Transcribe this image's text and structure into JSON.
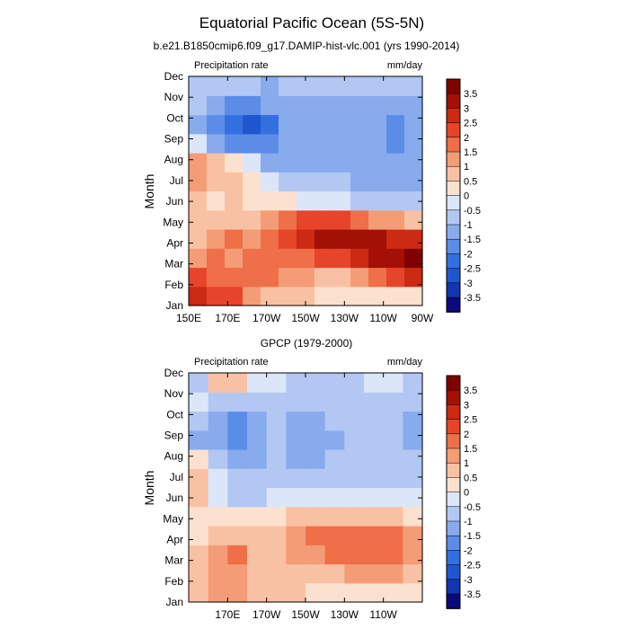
{
  "figure": {
    "title": "Equatorial Pacific Ocean (5S-5N)"
  },
  "chart_data": [
    {
      "type": "heatmap",
      "title": "b.e21.B1850cmip6.f09_g17.DAMIP-hist-vlc.001 (yrs 1990-2014)",
      "left_label": "Precipitation rate",
      "right_label": "mm/day",
      "ylabel": "Month",
      "xlabel": "",
      "x_ticks": [
        "150E",
        "170E",
        "170W",
        "150W",
        "130W",
        "110W",
        "90W"
      ],
      "y_ticks": [
        "Jan",
        "Feb",
        "Mar",
        "Apr",
        "May",
        "Jun",
        "Jul",
        "Aug",
        "Sep",
        "Oct",
        "Nov",
        "Dec"
      ],
      "colorbar_labels": [
        "3.5",
        "3",
        "2.5",
        "2",
        "1.5",
        "1",
        "0.5",
        "0",
        "-0.5",
        "-1",
        "-1.5",
        "-2",
        "-2.5",
        "-3",
        "-3.5"
      ],
      "rows": [
        [
          2.6,
          2.2,
          2.0,
          1.3,
          0.9,
          0.7,
          0.5,
          0.3,
          0.2,
          0.2,
          0.3,
          0.3,
          0.4
        ],
        [
          2.1,
          1.7,
          1.5,
          1.6,
          1.5,
          1.3,
          1.0,
          0.8,
          0.9,
          1.2,
          1.8,
          2.2,
          2.5
        ],
        [
          1.2,
          1.6,
          1.3,
          1.6,
          1.7,
          1.6,
          1.8,
          2.0,
          2.3,
          2.6,
          3.0,
          3.3,
          3.6
        ],
        [
          0.7,
          1.2,
          1.5,
          1.4,
          1.7,
          2.1,
          2.6,
          3.1,
          3.4,
          3.3,
          3.0,
          2.8,
          2.7
        ],
        [
          0.5,
          0.8,
          0.9,
          0.9,
          1.0,
          1.5,
          2.0,
          2.3,
          2.1,
          1.6,
          1.2,
          1.0,
          0.8
        ],
        [
          0.6,
          0.4,
          0.5,
          0.4,
          0.2,
          0.0,
          -0.3,
          -0.4,
          -0.5,
          -0.6,
          -0.8,
          -0.9,
          -1.0
        ],
        [
          1.0,
          0.6,
          0.6,
          0.3,
          -0.3,
          -0.7,
          -0.9,
          -1.0,
          -1.0,
          -1.1,
          -1.1,
          -1.2,
          -1.2
        ],
        [
          1.2,
          0.7,
          0.2,
          -0.5,
          -1.1,
          -1.1,
          -1.1,
          -1.1,
          -1.1,
          -1.2,
          -1.2,
          -1.5,
          -1.3
        ],
        [
          -0.5,
          -1.2,
          -1.6,
          -1.8,
          -1.9,
          -1.3,
          -1.2,
          -1.2,
          -1.2,
          -1.2,
          -1.2,
          -1.6,
          -1.4
        ],
        [
          -1.3,
          -1.8,
          -2.4,
          -2.6,
          -2.2,
          -1.4,
          -1.2,
          -1.2,
          -1.2,
          -1.3,
          -1.3,
          -1.7,
          -1.4
        ],
        [
          -1.0,
          -1.3,
          -1.6,
          -1.7,
          -1.5,
          -1.2,
          -1.1,
          -1.1,
          -1.1,
          -1.1,
          -1.1,
          -1.3,
          -1.2
        ],
        [
          -0.8,
          -1.0,
          -1.0,
          -1.0,
          -1.1,
          -1.0,
          -1.0,
          -1.0,
          -1.0,
          -1.0,
          -1.0,
          -1.0,
          -1.0
        ]
      ]
    },
    {
      "type": "heatmap",
      "title": "GPCP (1979-2000)",
      "left_label": "Precipitation rate",
      "right_label": "mm/day",
      "ylabel": "Month",
      "xlabel": "",
      "x_ticks": [
        "170E",
        "170W",
        "150W",
        "130W",
        "110W"
      ],
      "y_ticks": [
        "Jan",
        "Feb",
        "Mar",
        "Apr",
        "May",
        "Jun",
        "Jul",
        "Aug",
        "Sep",
        "Oct",
        "Nov",
        "Dec"
      ],
      "colorbar_labels": [
        "3.5",
        "3",
        "2.5",
        "2",
        "1.5",
        "1",
        "0.5",
        "0",
        "-0.5",
        "-1",
        "-1.5",
        "-2",
        "-2.5",
        "-3",
        "-3.5"
      ],
      "rows": [
        [
          0.8,
          1.0,
          1.2,
          0.9,
          0.6,
          0.5,
          0.4,
          0.3,
          0.3,
          0.3,
          0.3,
          0.3
        ],
        [
          0.6,
          1.2,
          1.4,
          0.9,
          0.7,
          0.6,
          0.7,
          0.8,
          1.0,
          1.1,
          1.0,
          0.8
        ],
        [
          0.6,
          1.3,
          1.5,
          0.9,
          0.8,
          1.0,
          1.4,
          1.7,
          1.9,
          1.8,
          1.7,
          1.4
        ],
        [
          0.4,
          0.9,
          0.9,
          0.6,
          0.8,
          1.2,
          1.7,
          1.9,
          1.8,
          1.8,
          1.6,
          1.2
        ],
        [
          0.3,
          0.4,
          0.3,
          0.2,
          0.3,
          0.6,
          0.8,
          0.9,
          0.8,
          0.8,
          0.6,
          0.4
        ],
        [
          0.5,
          -0.1,
          -0.6,
          -0.6,
          -0.5,
          -0.4,
          -0.3,
          -0.3,
          -0.3,
          -0.3,
          -0.3,
          -0.3
        ],
        [
          0.6,
          -0.4,
          -0.8,
          -0.9,
          -0.8,
          -0.8,
          -0.7,
          -0.7,
          -0.7,
          -0.7,
          -0.7,
          -0.7
        ],
        [
          0.2,
          -1.0,
          -1.2,
          -1.1,
          -1.0,
          -1.1,
          -1.1,
          -1.0,
          -0.9,
          -0.9,
          -0.9,
          -1.0
        ],
        [
          -1.4,
          -1.5,
          -1.6,
          -1.3,
          -1.0,
          -1.2,
          -1.2,
          -1.2,
          -1.0,
          -0.9,
          -1.0,
          -1.1
        ],
        [
          -0.9,
          -1.3,
          -1.6,
          -1.5,
          -1.0,
          -1.1,
          -1.1,
          -1.0,
          -0.8,
          -0.8,
          -0.9,
          -1.2
        ],
        [
          -0.5,
          -0.6,
          -0.6,
          -0.7,
          -0.7,
          -0.7,
          -0.7,
          -0.7,
          -0.6,
          -0.6,
          -0.6,
          -0.7
        ],
        [
          -0.6,
          0.6,
          0.9,
          -0.1,
          -0.5,
          -0.6,
          -0.6,
          -0.6,
          -0.6,
          -0.5,
          -0.5,
          -0.6
        ]
      ]
    }
  ],
  "palette": [
    "#0a0a7e",
    "#1236b0",
    "#1f55cf",
    "#336fe0",
    "#5b8de8",
    "#88abee",
    "#b2c8f3",
    "#dbe6f9",
    "#fde1cf",
    "#f9c1a3",
    "#f49c76",
    "#ee6f48",
    "#e6452a",
    "#cc2a12",
    "#a31006",
    "#800000"
  ]
}
